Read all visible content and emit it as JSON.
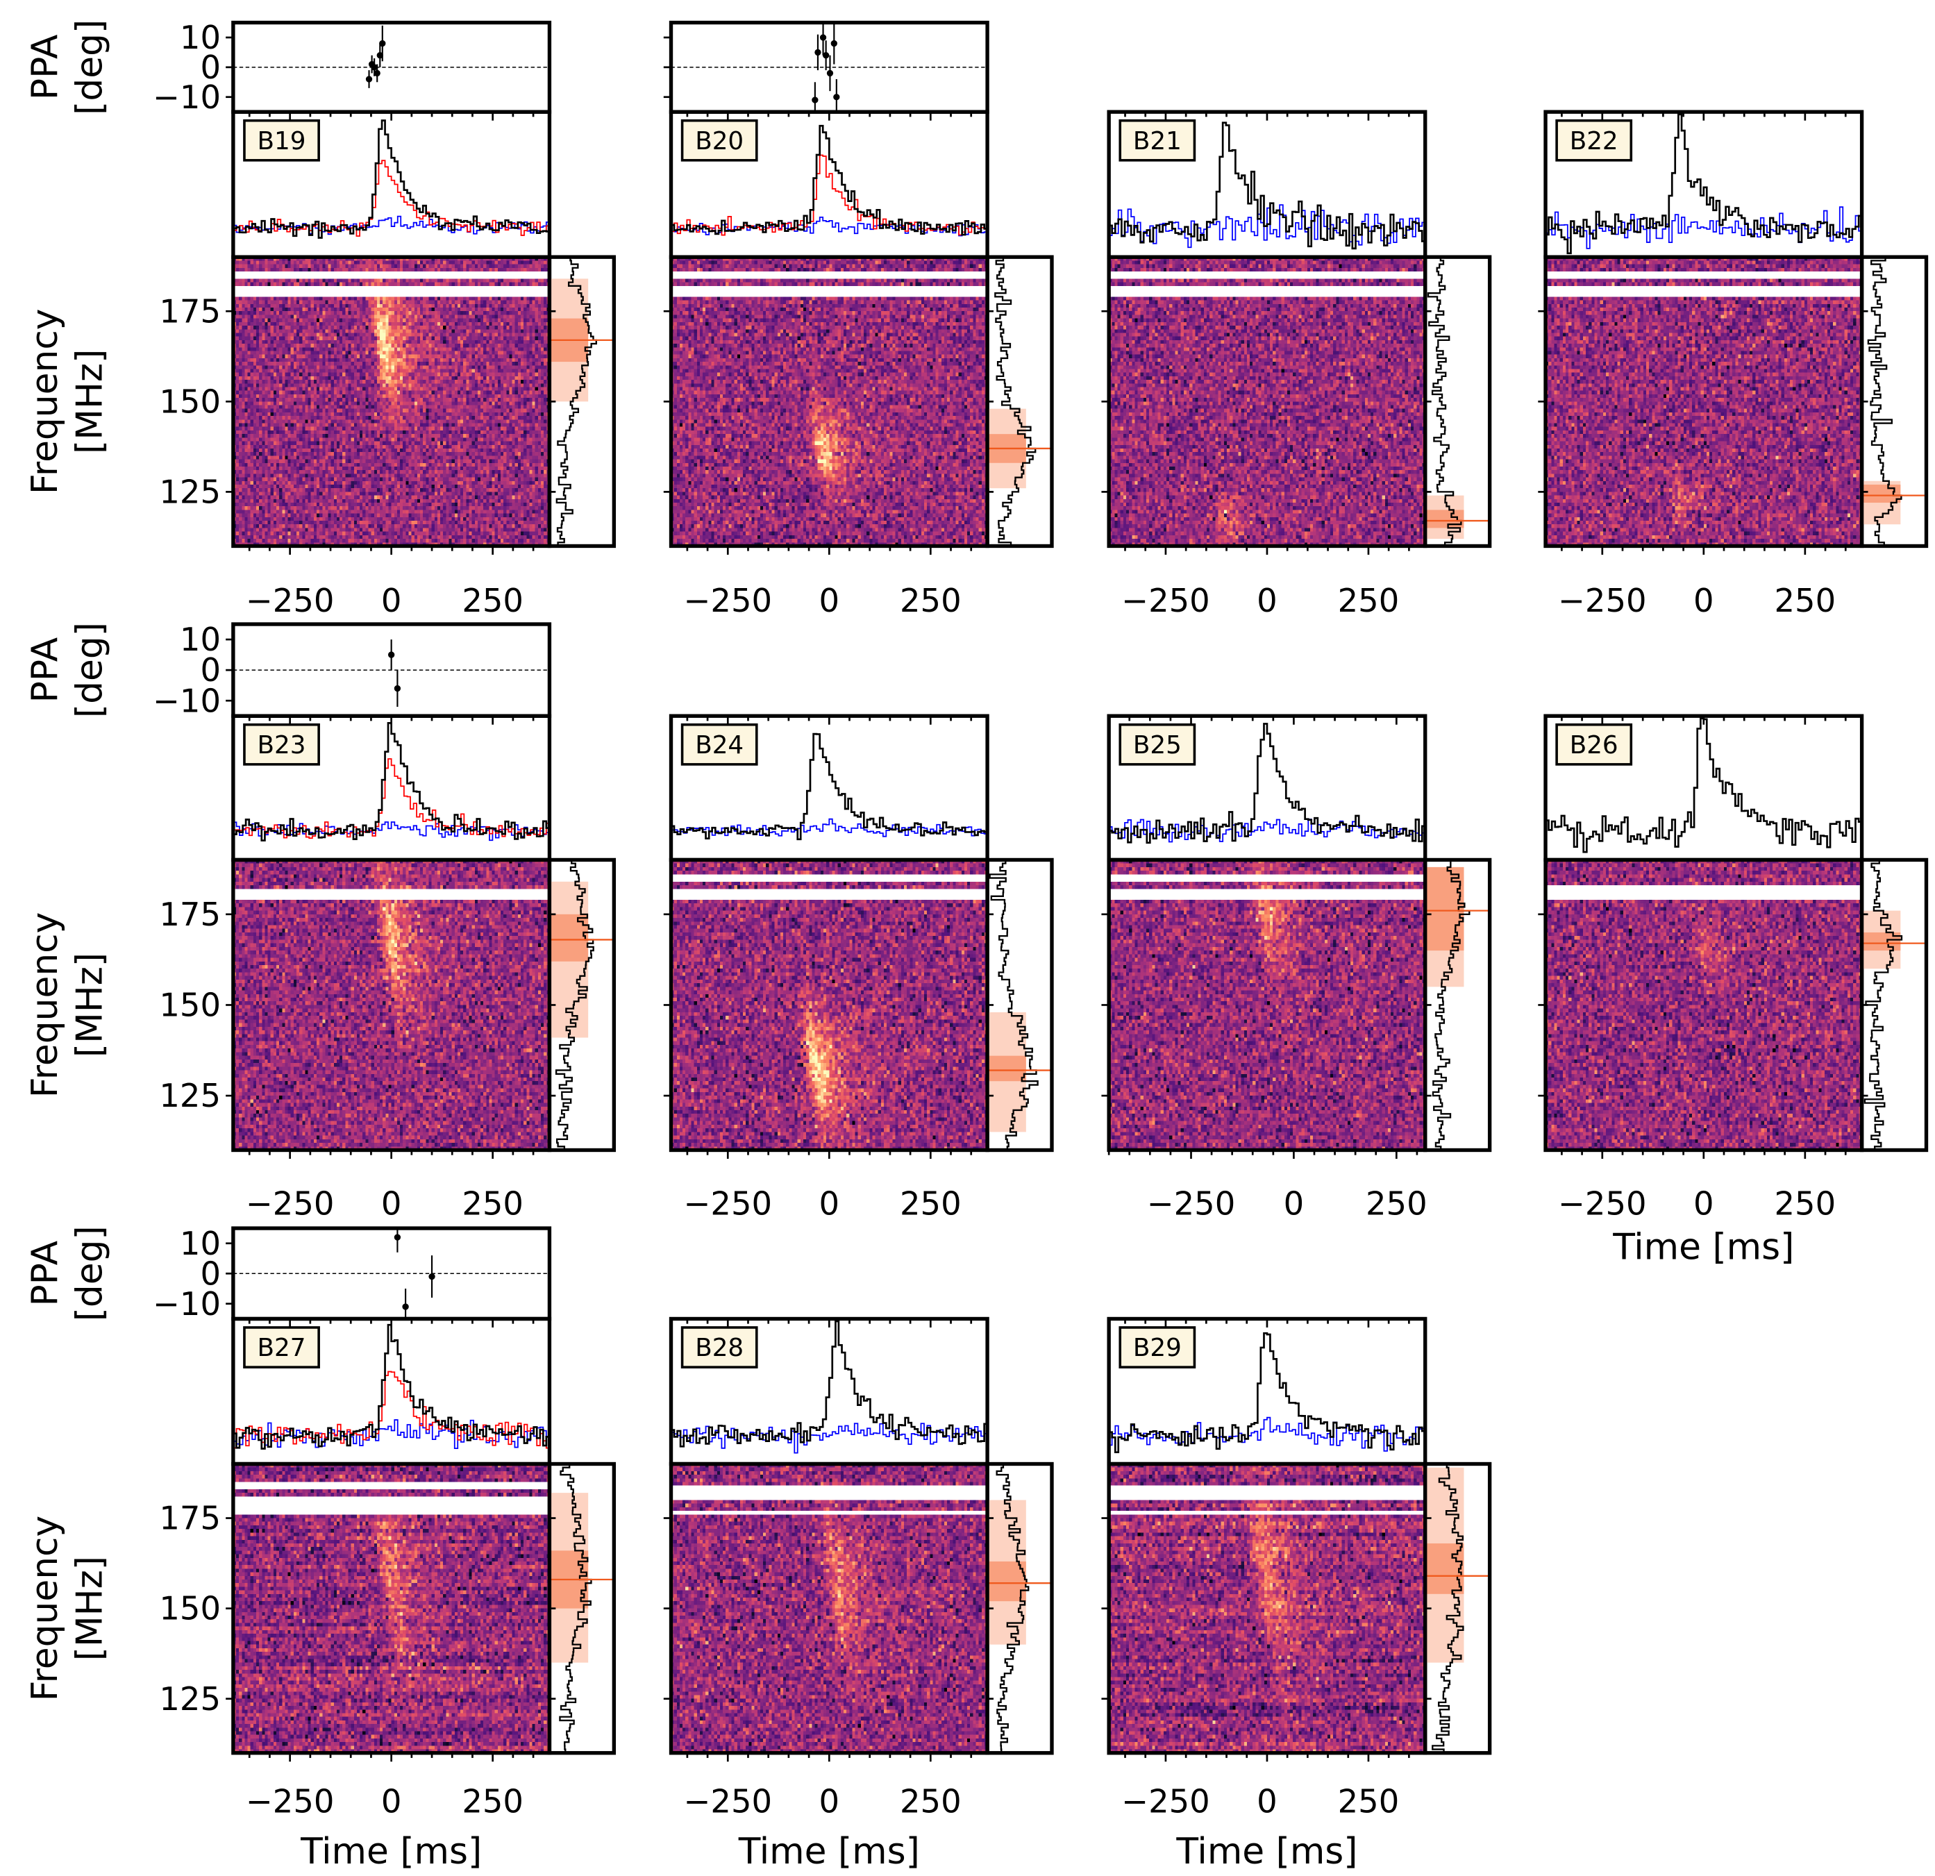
{
  "chart_data": {
    "type": "heatmap",
    "labels": {
      "ppa_ylabel": [
        "PPA",
        "[deg]"
      ],
      "freq_ylabel": [
        "Frequency",
        "[MHz]"
      ],
      "time_xlabel": "Time [ms]"
    },
    "freq_ylim": [
      110,
      190
    ],
    "freq_ticks": [
      125,
      150,
      175
    ],
    "time_ticks": [
      -250,
      0,
      250
    ],
    "ppa_ylim": [
      -15,
      15
    ],
    "ppa_ticks": [
      -10,
      0,
      10
    ],
    "colors": {
      "total_intensity": "#000000",
      "linear_pol": "#ff0000",
      "circular_pol": "#0000ff",
      "band_outer": "#fdd3c2",
      "band_inner": "#f9a07e",
      "band_center": "#f05a1e",
      "label_box": "#fdf6e0"
    },
    "panels": [
      {
        "label": "B19",
        "row": 0,
        "col": 0,
        "xlim": [
          -390,
          390
        ],
        "peak_ms": -20,
        "band": {
          "center": 167,
          "inner": [
            161,
            173
          ],
          "outer": [
            150,
            184
          ]
        },
        "masked": [
          [
            184,
            185.5
          ],
          [
            179,
            181.5
          ]
        ],
        "linear": true,
        "circular": true,
        "ppa": [
          [
            -55,
            -4,
            3
          ],
          [
            -48,
            1,
            3
          ],
          [
            -42,
            0,
            3
          ],
          [
            -35,
            -2,
            3
          ],
          [
            -28,
            4,
            4
          ],
          [
            -22,
            8,
            6
          ]
        ]
      },
      {
        "label": "B20",
        "row": 0,
        "col": 1,
        "xlim": [
          -390,
          390
        ],
        "peak_ms": -15,
        "band": {
          "center": 137,
          "inner": [
            133,
            141
          ],
          "outer": [
            126,
            148
          ]
        },
        "masked": [
          [
            184,
            185.5
          ],
          [
            179,
            181.5
          ]
        ],
        "linear": true,
        "circular": true,
        "ppa": [
          [
            -35,
            -11,
            6
          ],
          [
            -28,
            5,
            6
          ],
          [
            -15,
            10,
            6
          ],
          [
            -8,
            4,
            5
          ],
          [
            2,
            -2,
            6
          ],
          [
            12,
            8,
            7
          ],
          [
            18,
            -10,
            6
          ]
        ]
      },
      {
        "label": "B21",
        "row": 0,
        "col": 2,
        "xlim": [
          -390,
          390
        ],
        "peak_ms": -100,
        "band": {
          "center": 117,
          "inner": [
            115,
            120
          ],
          "outer": [
            112,
            124
          ]
        },
        "masked": [
          [
            184,
            185.5
          ],
          [
            179,
            181.5
          ]
        ],
        "linear": false,
        "circular": true,
        "ppa": []
      },
      {
        "label": "B22",
        "row": 0,
        "col": 3,
        "xlim": [
          -390,
          390
        ],
        "peak_ms": -60,
        "band": {
          "center": 124,
          "inner": [
            122,
            127
          ],
          "outer": [
            116,
            128
          ]
        },
        "masked": [
          [
            184,
            185.5
          ],
          [
            179,
            181.5
          ]
        ],
        "linear": false,
        "circular": true,
        "ppa": []
      },
      {
        "label": "B23",
        "row": 1,
        "col": 0,
        "xlim": [
          -390,
          390
        ],
        "peak_ms": 0,
        "band": {
          "center": 168,
          "inner": [
            162,
            175
          ],
          "outer": [
            141,
            184
          ]
        },
        "masked": [
          [
            179,
            181.5
          ]
        ],
        "linear": true,
        "circular": true,
        "ppa": [
          [
            0,
            5,
            5
          ],
          [
            15,
            -6,
            6
          ]
        ]
      },
      {
        "label": "B24",
        "row": 1,
        "col": 1,
        "xlim": [
          -390,
          390
        ],
        "peak_ms": -30,
        "band": {
          "center": 132,
          "inner": [
            129,
            136
          ],
          "outer": [
            115,
            148
          ]
        },
        "masked": [
          [
            184,
            185.5
          ],
          [
            179,
            181.5
          ]
        ],
        "linear": false,
        "circular": true,
        "ppa": []
      },
      {
        "label": "B25",
        "row": 1,
        "col": 2,
        "xlim": [
          -450,
          320
        ],
        "peak_ms": -70,
        "band": {
          "center": 176,
          "inner": [
            165,
            188
          ],
          "outer": [
            155,
            188
          ]
        },
        "masked": [
          [
            184,
            185.5
          ],
          [
            179,
            181.5
          ]
        ],
        "linear": false,
        "circular": true,
        "ppa": []
      },
      {
        "label": "B26",
        "row": 1,
        "col": 3,
        "xlim": [
          -390,
          390
        ],
        "peak_ms": 0,
        "band": {
          "center": 167,
          "inner": [
            165,
            170
          ],
          "outer": [
            160,
            176
          ]
        },
        "masked": [
          [
            179,
            183
          ]
        ],
        "linear": false,
        "circular": false,
        "ppa": []
      },
      {
        "label": "B27",
        "row": 2,
        "col": 0,
        "xlim": [
          -390,
          390
        ],
        "peak_ms": 0,
        "band": {
          "center": 158,
          "inner": [
            150,
            166
          ],
          "outer": [
            135,
            182
          ]
        },
        "masked": [
          [
            183,
            185
          ],
          [
            176,
            181
          ]
        ],
        "linear": true,
        "circular": true,
        "ppa": [
          [
            15,
            12,
            5
          ],
          [
            35,
            -11,
            6
          ],
          [
            100,
            -1,
            7
          ]
        ]
      },
      {
        "label": "B28",
        "row": 2,
        "col": 1,
        "xlim": [
          -390,
          390
        ],
        "peak_ms": 20,
        "band": {
          "center": 157,
          "inner": [
            152,
            163
          ],
          "outer": [
            140,
            180
          ]
        },
        "masked": [
          [
            180,
            184
          ],
          [
            176,
            177
          ]
        ],
        "linear": false,
        "circular": true,
        "ppa": []
      },
      {
        "label": "B29",
        "row": 2,
        "col": 2,
        "xlim": [
          -390,
          390
        ],
        "peak_ms": 0,
        "band": {
          "center": 159,
          "inner": [
            154,
            168
          ],
          "outer": [
            135,
            189
          ]
        },
        "masked": [
          [
            180,
            184
          ],
          [
            176,
            177
          ]
        ],
        "linear": false,
        "circular": true,
        "ppa": []
      }
    ]
  }
}
